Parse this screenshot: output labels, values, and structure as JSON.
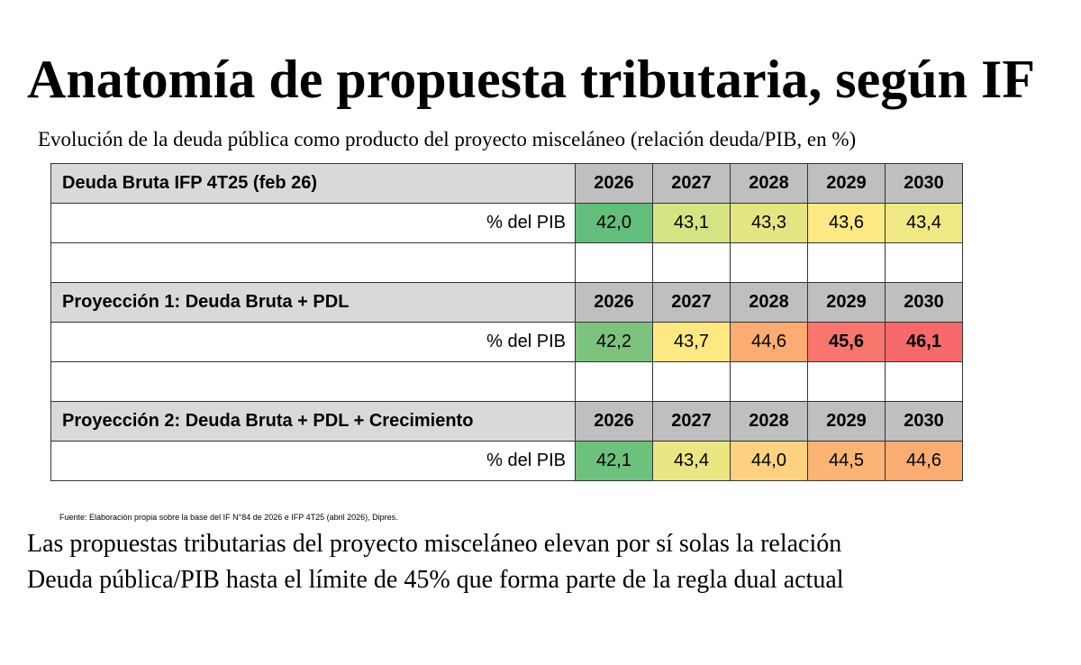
{
  "title": "Anatomía de propuesta tributaria, según IF",
  "subtitle": "Evolución de la deuda pública como producto del proyecto misceláneo (relación deuda/PIB, en %)",
  "chart_data": {
    "type": "table",
    "years": [
      "2026",
      "2027",
      "2028",
      "2029",
      "2030"
    ],
    "row_label": "% del PIB",
    "sections": [
      {
        "header": "Deuda Bruta IFP 4T25 (feb 26)",
        "values": [
          "42,0",
          "43,1",
          "43,3",
          "43,6",
          "43,4"
        ],
        "colors": [
          "#63be7b",
          "#d6e382",
          "#e4e683",
          "#fbe983",
          "#f0e884"
        ],
        "bold": [
          false,
          false,
          false,
          false,
          false
        ]
      },
      {
        "header": "Proyección 1: Deuda Bruta + PDL",
        "values": [
          "42,2",
          "43,7",
          "44,6",
          "45,6",
          "46,1"
        ],
        "colors": [
          "#7cc37d",
          "#fde882",
          "#fbac73",
          "#f8766d",
          "#f8696b"
        ],
        "bold": [
          false,
          false,
          false,
          true,
          true
        ]
      },
      {
        "header": "Proyección 2: Deuda Bruta + PDL + Crecimiento",
        "values": [
          "42,1",
          "43,4",
          "44,0",
          "44,5",
          "44,6"
        ],
        "colors": [
          "#6ec17c",
          "#eae684",
          "#fed280",
          "#fcb474",
          "#fbac73"
        ],
        "bold": [
          false,
          false,
          false,
          false,
          false
        ]
      }
    ]
  },
  "source": "Fuente: Elaboración propia sobre la base del IF N°84 de 2026 e IFP 4T25 (abril 2026), Dipres.",
  "conclusion": {
    "line1": "Las propuestas tributarias del proyecto misceláneo elevan por sí solas la relación",
    "line2": "Deuda pública/PIB hasta el límite de 45% que forma parte de la regla dual actual"
  }
}
